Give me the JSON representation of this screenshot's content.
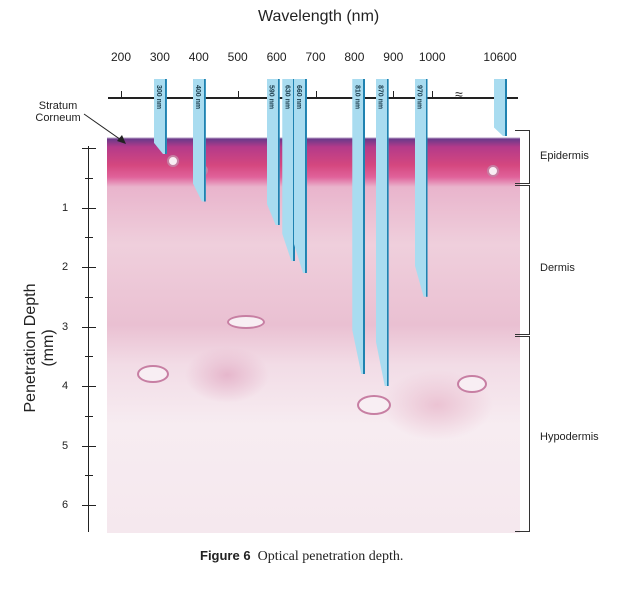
{
  "figure": {
    "top_axis_title": "Wavelength (nm)",
    "top_ticks": [
      "200",
      "300",
      "400",
      "500",
      "600",
      "700",
      "800",
      "900",
      "1000",
      "10600"
    ],
    "left_axis_title": "Penetration Depth (mm)",
    "left_ticks": [
      "1",
      "2",
      "3",
      "4",
      "5",
      "6"
    ],
    "stratum_label": "Stratum Corneum",
    "beams": [
      {
        "label": "300 nm",
        "wavelength_nm": 300,
        "depth_mm": 0.1
      },
      {
        "label": "400 nm",
        "wavelength_nm": 400,
        "depth_mm": 0.9
      },
      {
        "label": "590 nm",
        "wavelength_nm": 590,
        "depth_mm": 1.3
      },
      {
        "label": "630 nm",
        "wavelength_nm": 630,
        "depth_mm": 1.9
      },
      {
        "label": "660 nm",
        "wavelength_nm": 660,
        "depth_mm": 2.1
      },
      {
        "label": "810 nm",
        "wavelength_nm": 810,
        "depth_mm": 3.8
      },
      {
        "label": "870 nm",
        "wavelength_nm": 870,
        "depth_mm": 4.0
      },
      {
        "label": "970 nm",
        "wavelength_nm": 970,
        "depth_mm": 2.5
      },
      {
        "label": "",
        "wavelength_nm": 10600,
        "depth_mm": -0.2
      }
    ],
    "layers": [
      "Epidermis",
      "Dermis",
      "Hypodermis"
    ],
    "colors": {
      "beam": "#a9dcf0",
      "beam_edge": "#1f82b0",
      "epidermis": "#d4477f"
    }
  },
  "caption": {
    "label": "Figure 6",
    "text": "Optical penetration depth."
  }
}
